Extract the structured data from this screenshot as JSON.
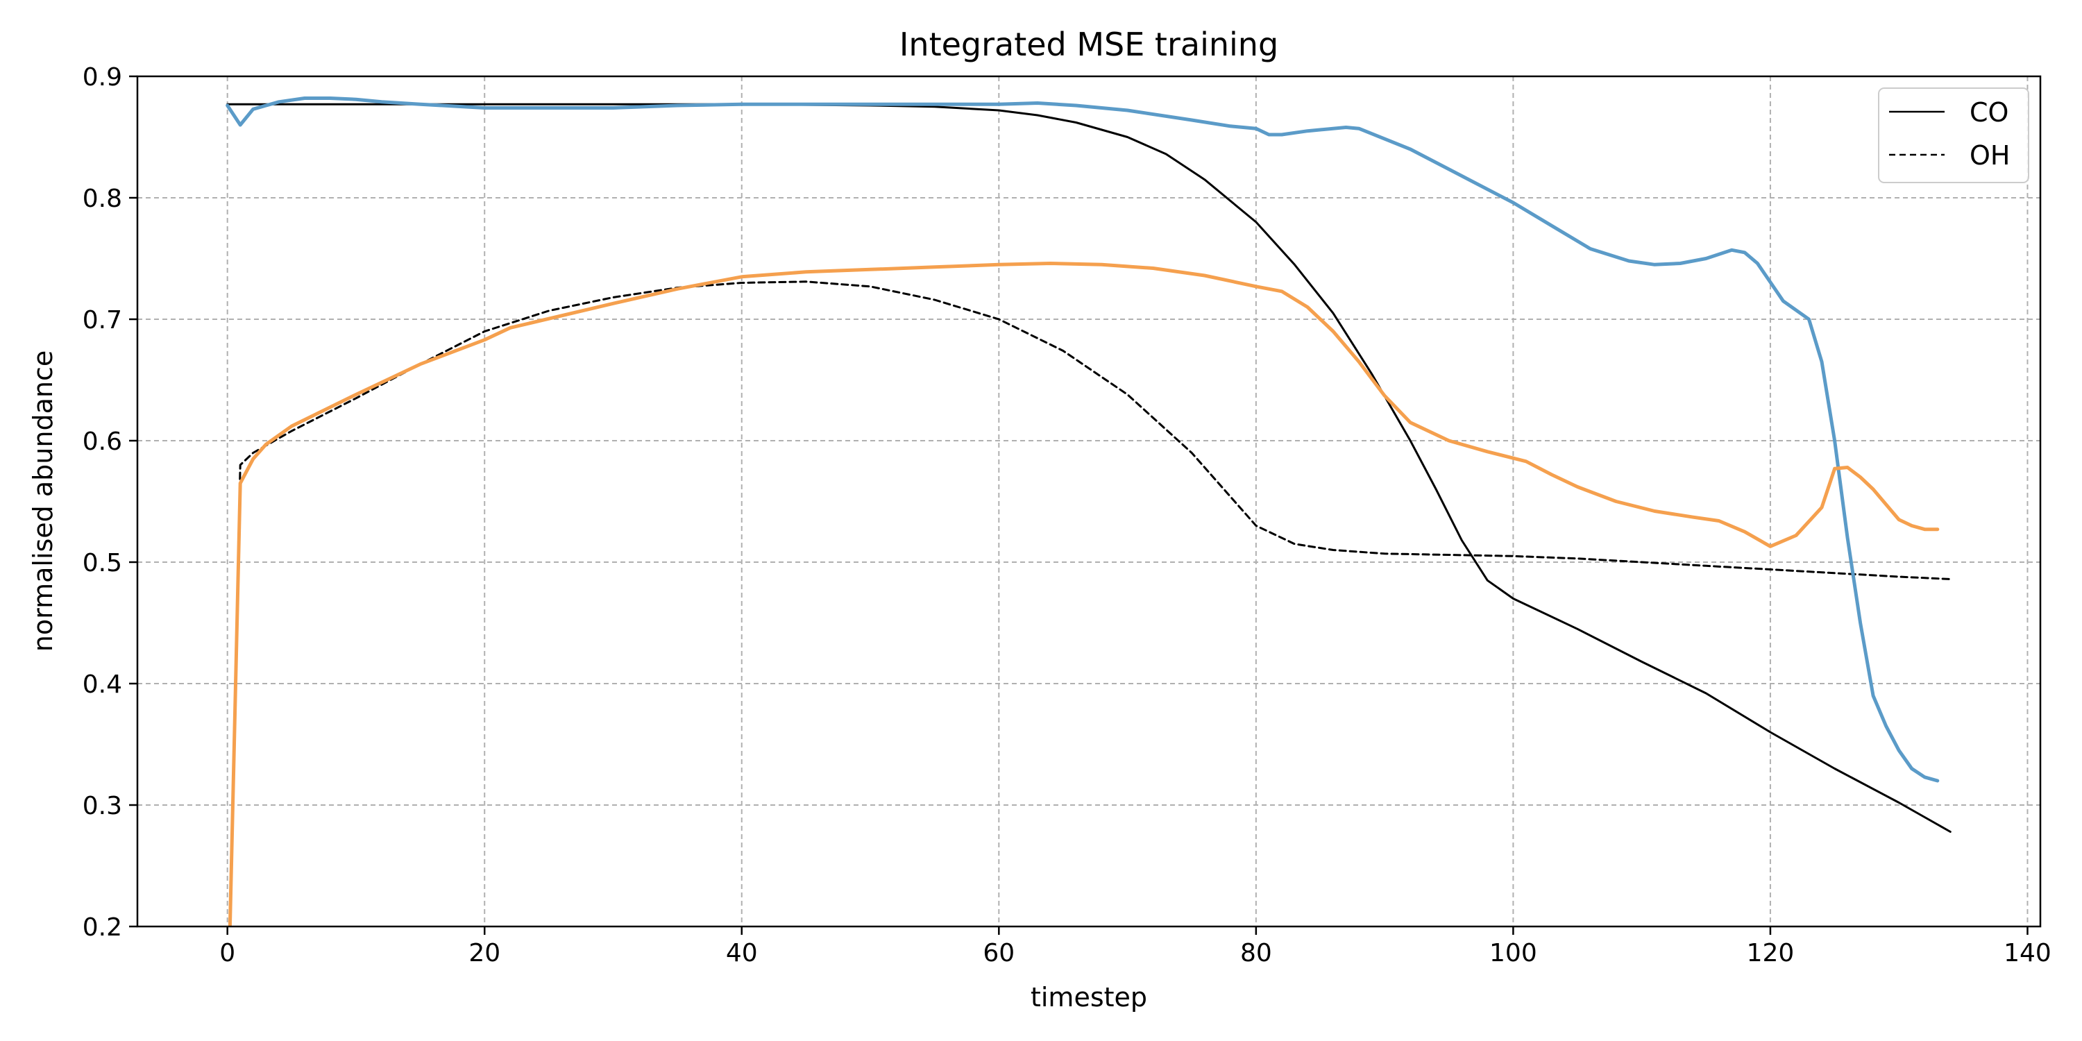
{
  "chart_data": {
    "type": "line",
    "title": "Integrated MSE training",
    "xlabel": "timestep",
    "ylabel": "normalised abundance",
    "xlim": [
      -7,
      141
    ],
    "ylim": [
      0.2,
      0.9
    ],
    "xticks": [
      0,
      20,
      40,
      60,
      80,
      100,
      120,
      140
    ],
    "yticks": [
      0.2,
      0.3,
      0.4,
      0.5,
      0.6,
      0.7,
      0.8,
      0.9
    ],
    "xtick_labels": [
      "0",
      "20",
      "40",
      "60",
      "80",
      "100",
      "120",
      "140"
    ],
    "ytick_labels": [
      "0.2",
      "0.3",
      "0.4",
      "0.5",
      "0.6",
      "0.7",
      "0.8",
      "0.9"
    ],
    "grid": true,
    "legend_position": "top-right",
    "legend": [
      {
        "label": "CO",
        "style": "solid",
        "color": "#000000"
      },
      {
        "label": "OH",
        "style": "dashed",
        "color": "#000000"
      }
    ],
    "series": [
      {
        "style": "solid",
        "color": "#000000",
        "points": [
          [
            0,
            0.877
          ],
          [
            10,
            0.877
          ],
          [
            20,
            0.877
          ],
          [
            30,
            0.877
          ],
          [
            40,
            0.877
          ],
          [
            50,
            0.876
          ],
          [
            55,
            0.875
          ],
          [
            60,
            0.872
          ],
          [
            63,
            0.868
          ],
          [
            66,
            0.862
          ],
          [
            70,
            0.85
          ],
          [
            73,
            0.836
          ],
          [
            76,
            0.815
          ],
          [
            80,
            0.78
          ],
          [
            83,
            0.745
          ],
          [
            86,
            0.705
          ],
          [
            89,
            0.655
          ],
          [
            92,
            0.6
          ],
          [
            94,
            0.56
          ],
          [
            96,
            0.518
          ],
          [
            98,
            0.485
          ],
          [
            100,
            0.47
          ],
          [
            105,
            0.445
          ],
          [
            110,
            0.418
          ],
          [
            115,
            0.392
          ],
          [
            120,
            0.36
          ],
          [
            125,
            0.33
          ],
          [
            130,
            0.302
          ],
          [
            134,
            0.278
          ]
        ]
      },
      {
        "style": "dashed",
        "color": "#000000",
        "points": [
          [
            0.2,
            0.2
          ],
          [
            1,
            0.58
          ],
          [
            2,
            0.59
          ],
          [
            5,
            0.608
          ],
          [
            10,
            0.635
          ],
          [
            15,
            0.663
          ],
          [
            20,
            0.69
          ],
          [
            25,
            0.707
          ],
          [
            30,
            0.718
          ],
          [
            35,
            0.726
          ],
          [
            40,
            0.73
          ],
          [
            45,
            0.731
          ],
          [
            50,
            0.727
          ],
          [
            55,
            0.716
          ],
          [
            60,
            0.7
          ],
          [
            65,
            0.674
          ],
          [
            70,
            0.638
          ],
          [
            75,
            0.59
          ],
          [
            80,
            0.53
          ],
          [
            83,
            0.515
          ],
          [
            86,
            0.51
          ],
          [
            90,
            0.507
          ],
          [
            95,
            0.506
          ],
          [
            100,
            0.505
          ],
          [
            105,
            0.503
          ],
          [
            110,
            0.5
          ],
          [
            115,
            0.497
          ],
          [
            120,
            0.494
          ],
          [
            125,
            0.491
          ],
          [
            130,
            0.488
          ],
          [
            134,
            0.486
          ]
        ]
      },
      {
        "style": "solid",
        "color": "#5b9bc8",
        "points": [
          [
            0,
            0.876
          ],
          [
            1,
            0.86
          ],
          [
            2,
            0.873
          ],
          [
            4,
            0.879
          ],
          [
            6,
            0.882
          ],
          [
            8,
            0.882
          ],
          [
            10,
            0.881
          ],
          [
            12,
            0.879
          ],
          [
            15,
            0.877
          ],
          [
            20,
            0.874
          ],
          [
            25,
            0.874
          ],
          [
            30,
            0.874
          ],
          [
            35,
            0.876
          ],
          [
            40,
            0.877
          ],
          [
            45,
            0.877
          ],
          [
            50,
            0.877
          ],
          [
            55,
            0.877
          ],
          [
            60,
            0.877
          ],
          [
            63,
            0.878
          ],
          [
            66,
            0.876
          ],
          [
            70,
            0.872
          ],
          [
            75,
            0.864
          ],
          [
            78,
            0.859
          ],
          [
            80,
            0.857
          ],
          [
            81,
            0.852
          ],
          [
            82,
            0.852
          ],
          [
            84,
            0.855
          ],
          [
            87,
            0.858
          ],
          [
            88,
            0.857
          ],
          [
            92,
            0.84
          ],
          [
            96,
            0.818
          ],
          [
            100,
            0.796
          ],
          [
            103,
            0.777
          ],
          [
            106,
            0.758
          ],
          [
            109,
            0.748
          ],
          [
            111,
            0.745
          ],
          [
            113,
            0.746
          ],
          [
            115,
            0.75
          ],
          [
            117,
            0.757
          ],
          [
            118,
            0.755
          ],
          [
            119,
            0.746
          ],
          [
            121,
            0.715
          ],
          [
            123,
            0.7
          ],
          [
            124,
            0.665
          ],
          [
            125,
            0.6
          ],
          [
            126,
            0.52
          ],
          [
            127,
            0.45
          ],
          [
            128,
            0.39
          ],
          [
            129,
            0.365
          ],
          [
            130,
            0.345
          ],
          [
            131,
            0.33
          ],
          [
            132,
            0.323
          ],
          [
            133,
            0.32
          ]
        ]
      },
      {
        "style": "solid",
        "color": "#f5a04e",
        "points": [
          [
            0.2,
            0.2
          ],
          [
            1,
            0.565
          ],
          [
            2,
            0.585
          ],
          [
            3,
            0.597
          ],
          [
            5,
            0.612
          ],
          [
            10,
            0.638
          ],
          [
            15,
            0.663
          ],
          [
            20,
            0.683
          ],
          [
            22,
            0.693
          ],
          [
            30,
            0.713
          ],
          [
            35,
            0.725
          ],
          [
            40,
            0.735
          ],
          [
            45,
            0.739
          ],
          [
            50,
            0.741
          ],
          [
            55,
            0.743
          ],
          [
            60,
            0.745
          ],
          [
            64,
            0.746
          ],
          [
            68,
            0.745
          ],
          [
            72,
            0.742
          ],
          [
            76,
            0.736
          ],
          [
            80,
            0.727
          ],
          [
            82,
            0.723
          ],
          [
            84,
            0.71
          ],
          [
            86,
            0.69
          ],
          [
            88,
            0.665
          ],
          [
            90,
            0.637
          ],
          [
            92,
            0.615
          ],
          [
            95,
            0.6
          ],
          [
            98,
            0.591
          ],
          [
            101,
            0.583
          ],
          [
            103,
            0.572
          ],
          [
            105,
            0.562
          ],
          [
            108,
            0.55
          ],
          [
            111,
            0.542
          ],
          [
            114,
            0.537
          ],
          [
            116,
            0.534
          ],
          [
            118,
            0.525
          ],
          [
            120,
            0.513
          ],
          [
            122,
            0.522
          ],
          [
            124,
            0.545
          ],
          [
            125,
            0.577
          ],
          [
            126,
            0.578
          ],
          [
            127,
            0.57
          ],
          [
            128,
            0.56
          ],
          [
            130,
            0.535
          ],
          [
            131,
            0.53
          ],
          [
            132,
            0.527
          ],
          [
            133,
            0.527
          ]
        ]
      }
    ]
  }
}
